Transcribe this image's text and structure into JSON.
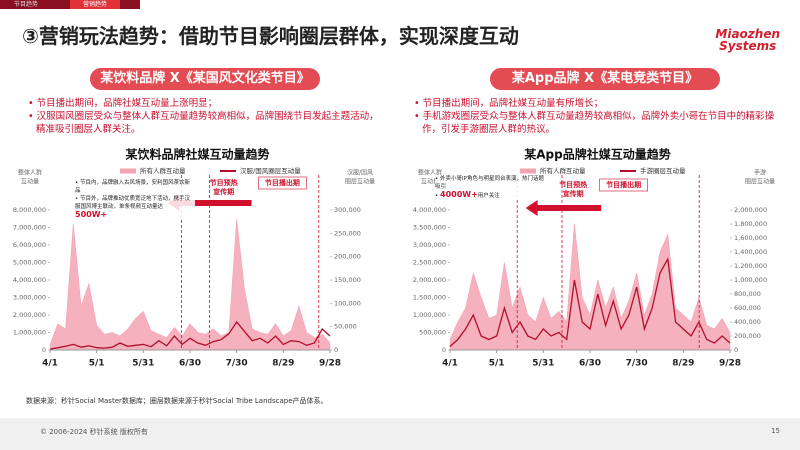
{
  "tabs": [
    "节目趋势",
    "营销趋势"
  ],
  "title": "③营销玩法趋势：借助节目影响圈层群体，实现深度互动",
  "logo": [
    "Miaozhen",
    "Systems"
  ],
  "panels": [
    {
      "heading": "某饮料品牌 X《某国风文化类节目》",
      "bullets": [
        "节目播出期间，品牌社媒互动量上涨明显；",
        "汉服国风圈层受众与整体人群互动量趋势较高相似，品牌围绕节目发起主题活动，精准吸引圈层人群关注。"
      ]
    },
    {
      "heading": "某App品牌 X《某电竞类节目》",
      "bullets": [
        "节目播出期间，品牌社媒互动量有所增长；",
        "手机游戏圈层受众与整体人群互动量趋势较高相似，品牌外卖小哥在节目中的精彩操作，引发手游圈层人群的热议。"
      ]
    }
  ],
  "chart_data": [
    {
      "type": "line",
      "title": "某饮料品牌社媒互动量趋势",
      "ylabel": [
        "整体人群",
        "互动量"
      ],
      "y2label": [
        "汉服/国风",
        "圈层互动量"
      ],
      "preheat_label": [
        "节目预热",
        "宣传期"
      ],
      "airing_label": "节目播出期",
      "note_bullets": true,
      "notes": [
        [
          {
            "text": "节目内，品牌融入古风场景，安利国风茶饮新品"
          }
        ],
        [
          {
            "text": "节目外，品牌推动优质宽泛地下活动，携手汉服国风博主联动，单条视频互动量达"
          },
          {
            "text": "500W+",
            "em": true
          }
        ]
      ],
      "x": [
        0,
        5,
        10,
        15,
        20,
        25,
        30,
        35,
        40,
        45,
        50,
        55,
        60,
        65,
        70,
        75,
        80,
        85,
        90,
        95,
        100,
        105,
        110,
        115,
        120,
        125,
        130,
        135,
        140,
        145,
        150,
        155,
        160,
        165,
        170,
        175,
        180
      ],
      "xlim": [
        0,
        180
      ],
      "xticks": [
        {
          "value": 0,
          "label": "4/1"
        },
        {
          "value": 30,
          "label": "5/1"
        },
        {
          "value": 60,
          "label": "5/31"
        },
        {
          "value": 90,
          "label": "6/30"
        },
        {
          "value": 120,
          "label": "7/30"
        },
        {
          "value": 150,
          "label": "8/29"
        },
        {
          "value": 180,
          "label": "9/28"
        }
      ],
      "ylim": [
        0,
        8000000
      ],
      "yticks": [
        0,
        {
          "value": 1000000,
          "label": "1,000,000"
        },
        {
          "value": 2000000,
          "label": "2,000,000"
        },
        {
          "value": 3000000,
          "label": "3,000,000"
        },
        {
          "value": 4000000,
          "label": "4,000,000"
        },
        {
          "value": 5000000,
          "label": "5,000,000"
        },
        {
          "value": 6000000,
          "label": "6,000,000"
        },
        {
          "value": 7000000,
          "label": "7,000,000"
        },
        {
          "value": 8000000,
          "label": "8,000,000"
        }
      ],
      "y2lim": [
        0,
        300000
      ],
      "y2ticks": [
        0,
        {
          "value": 50000,
          "label": "50,000"
        },
        {
          "value": 100000,
          "label": "100,000"
        },
        {
          "value": 150000,
          "label": "150,000"
        },
        {
          "value": 200000,
          "label": "200,000"
        },
        {
          "value": 250000,
          "label": "250,000"
        },
        {
          "value": 300000,
          "label": "300,000"
        }
      ],
      "series": [
        {
          "name": "所有人群互动量",
          "color": "#f4a3b3",
          "fill": true,
          "values": [
            300000,
            1500000,
            1200000,
            7200000,
            2500000,
            3800000,
            1400000,
            900000,
            1000000,
            800000,
            1200000,
            1800000,
            2200000,
            1100000,
            900000,
            700000,
            1300000,
            800000,
            1500000,
            1000000,
            900000,
            1200000,
            800000,
            1000000,
            7500000,
            3500000,
            1200000,
            1000000,
            900000,
            1500000,
            800000,
            1100000,
            2500000,
            1000000,
            700000,
            900000,
            400000
          ]
        },
        {
          "name": "汉服/国风圈层互动量",
          "color": "#b0102c",
          "axis": "y2",
          "values": [
            2000,
            5000,
            8000,
            12000,
            6000,
            9000,
            5000,
            4000,
            6000,
            15000,
            8000,
            10000,
            12000,
            7000,
            20000,
            9000,
            30000,
            12000,
            25000,
            15000,
            10000,
            18000,
            22000,
            35000,
            60000,
            40000,
            20000,
            25000,
            15000,
            30000,
            12000,
            20000,
            18000,
            10000,
            15000,
            45000,
            30000
          ]
        }
      ]
    },
    {
      "type": "line",
      "title": "某App品牌社媒互动量趋势",
      "ylabel": [
        "整体人群",
        "互动量"
      ],
      "y2label": [
        "手游",
        "圈层互动量"
      ],
      "preheat_label": [
        "节目预热",
        "宣传期"
      ],
      "airing_label": "节目播出期",
      "note_bullets": true,
      "notes": [
        [
          {
            "text": "外卖小哥IP角色与明星同台表演，热门话题吸引"
          }
        ],
        [
          {
            "text": "4000W+",
            "em": true
          },
          {
            "text": "用户关注"
          }
        ]
      ],
      "x": [
        0,
        5,
        10,
        15,
        20,
        25,
        30,
        35,
        40,
        45,
        50,
        55,
        60,
        65,
        70,
        75,
        80,
        85,
        90,
        95,
        100,
        105,
        110,
        115,
        120,
        125,
        130,
        135,
        140,
        145,
        150,
        155,
        160,
        165,
        170,
        175,
        180
      ],
      "xlim": [
        0,
        180
      ],
      "xticks": [
        {
          "value": 0,
          "label": "4/1"
        },
        {
          "value": 30,
          "label": "5/1"
        },
        {
          "value": 60,
          "label": "5/31"
        },
        {
          "value": 90,
          "label": "6/30"
        },
        {
          "value": 120,
          "label": "7/30"
        },
        {
          "value": 150,
          "label": "8/29"
        },
        {
          "value": 180,
          "label": "9/28"
        }
      ],
      "ylim": [
        0,
        4000000
      ],
      "yticks": [
        0,
        {
          "value": 500000,
          "label": "500,000"
        },
        {
          "value": 1000000,
          "label": "1,000,000"
        },
        {
          "value": 1500000,
          "label": "1,500,000"
        },
        {
          "value": 2000000,
          "label": "2,000,000"
        },
        {
          "value": 2500000,
          "label": "2,500,000"
        },
        {
          "value": 3000000,
          "label": "3,000,000"
        },
        {
          "value": 3500000,
          "label": "3,500,000"
        },
        {
          "value": 4000000,
          "label": "4,000,000"
        }
      ],
      "y2lim": [
        0,
        2000000
      ],
      "y2ticks": [
        0,
        {
          "value": 200000,
          "label": "200,000"
        },
        {
          "value": 400000,
          "label": "400,000"
        },
        {
          "value": 600000,
          "label": "600,000"
        },
        {
          "value": 800000,
          "label": "800,000"
        },
        {
          "value": 1000000,
          "label": "1,000,000"
        },
        {
          "value": 1200000,
          "label": "1,200,000"
        },
        {
          "value": 1400000,
          "label": "1,400,000"
        },
        {
          "value": 1600000,
          "label": "1,600,000"
        },
        {
          "value": 1800000,
          "label": "1,800,000"
        },
        {
          "value": 2000000,
          "label": "2,000,000"
        }
      ],
      "series": [
        {
          "name": "所有人群互动量",
          "color": "#f4a3b3",
          "fill": true,
          "values": [
            300000,
            800000,
            1200000,
            2200000,
            1500000,
            900000,
            1000000,
            2500000,
            1200000,
            1800000,
            1000000,
            800000,
            1500000,
            900000,
            1100000,
            800000,
            3600000,
            1500000,
            1000000,
            2000000,
            1200000,
            1800000,
            900000,
            1400000,
            2200000,
            1000000,
            1600000,
            2800000,
            3300000,
            1200000,
            1000000,
            800000,
            1500000,
            700000,
            600000,
            900000,
            500000
          ]
        },
        {
          "name": "手游圈层互动量",
          "color": "#b0102c",
          "axis": "y2",
          "values": [
            50000,
            150000,
            300000,
            500000,
            200000,
            150000,
            200000,
            600000,
            250000,
            400000,
            200000,
            150000,
            300000,
            200000,
            250000,
            150000,
            1000000,
            400000,
            300000,
            800000,
            350000,
            700000,
            300000,
            500000,
            900000,
            300000,
            600000,
            1100000,
            1300000,
            400000,
            300000,
            200000,
            400000,
            150000,
            100000,
            200000,
            100000
          ]
        }
      ]
    }
  ],
  "source": "数据来源：秒针Social Master数据库；圈层数据来源于秒针Social Tribe Landscape产品体系。",
  "footer": {
    "copyright": "© 2006-2024 秒针系统 版权所有",
    "page": "15"
  }
}
